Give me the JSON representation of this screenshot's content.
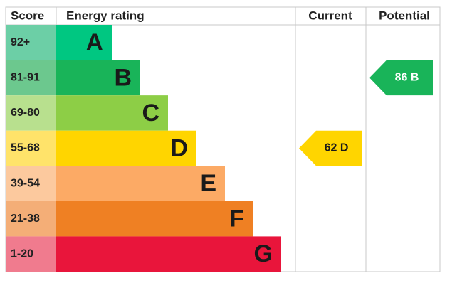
{
  "header": {
    "score": "Score",
    "rating": "Energy rating",
    "current": "Current",
    "potential": "Potential"
  },
  "bands": [
    {
      "score": "92+",
      "letter": "A",
      "color": "#00c781",
      "score_color": "#6ccfa6",
      "text_color": "#ffffff"
    },
    {
      "score": "81-91",
      "letter": "B",
      "color": "#19b459",
      "score_color": "#6cc88e",
      "text_color": "#ffffff"
    },
    {
      "score": "69-80",
      "letter": "C",
      "color": "#8dce46",
      "score_color": "#b8e08e",
      "text_color": "#ffffff"
    },
    {
      "score": "55-68",
      "letter": "D",
      "color": "#ffd500",
      "score_color": "#ffe36a",
      "text_color": "#1a1a1a"
    },
    {
      "score": "39-54",
      "letter": "E",
      "color": "#fcaa65",
      "score_color": "#fcc99e",
      "text_color": "#1a1a1a"
    },
    {
      "score": "21-38",
      "letter": "F",
      "color": "#ef8023",
      "score_color": "#f4ae77",
      "text_color": "#1a1a1a"
    },
    {
      "score": "1-20",
      "letter": "G",
      "color": "#e9153b",
      "score_color": "#f07b8e",
      "text_color": "#1a1a1a"
    }
  ],
  "current": {
    "value": 62,
    "band": "D"
  },
  "potential": {
    "value": 86,
    "band": "B"
  }
}
